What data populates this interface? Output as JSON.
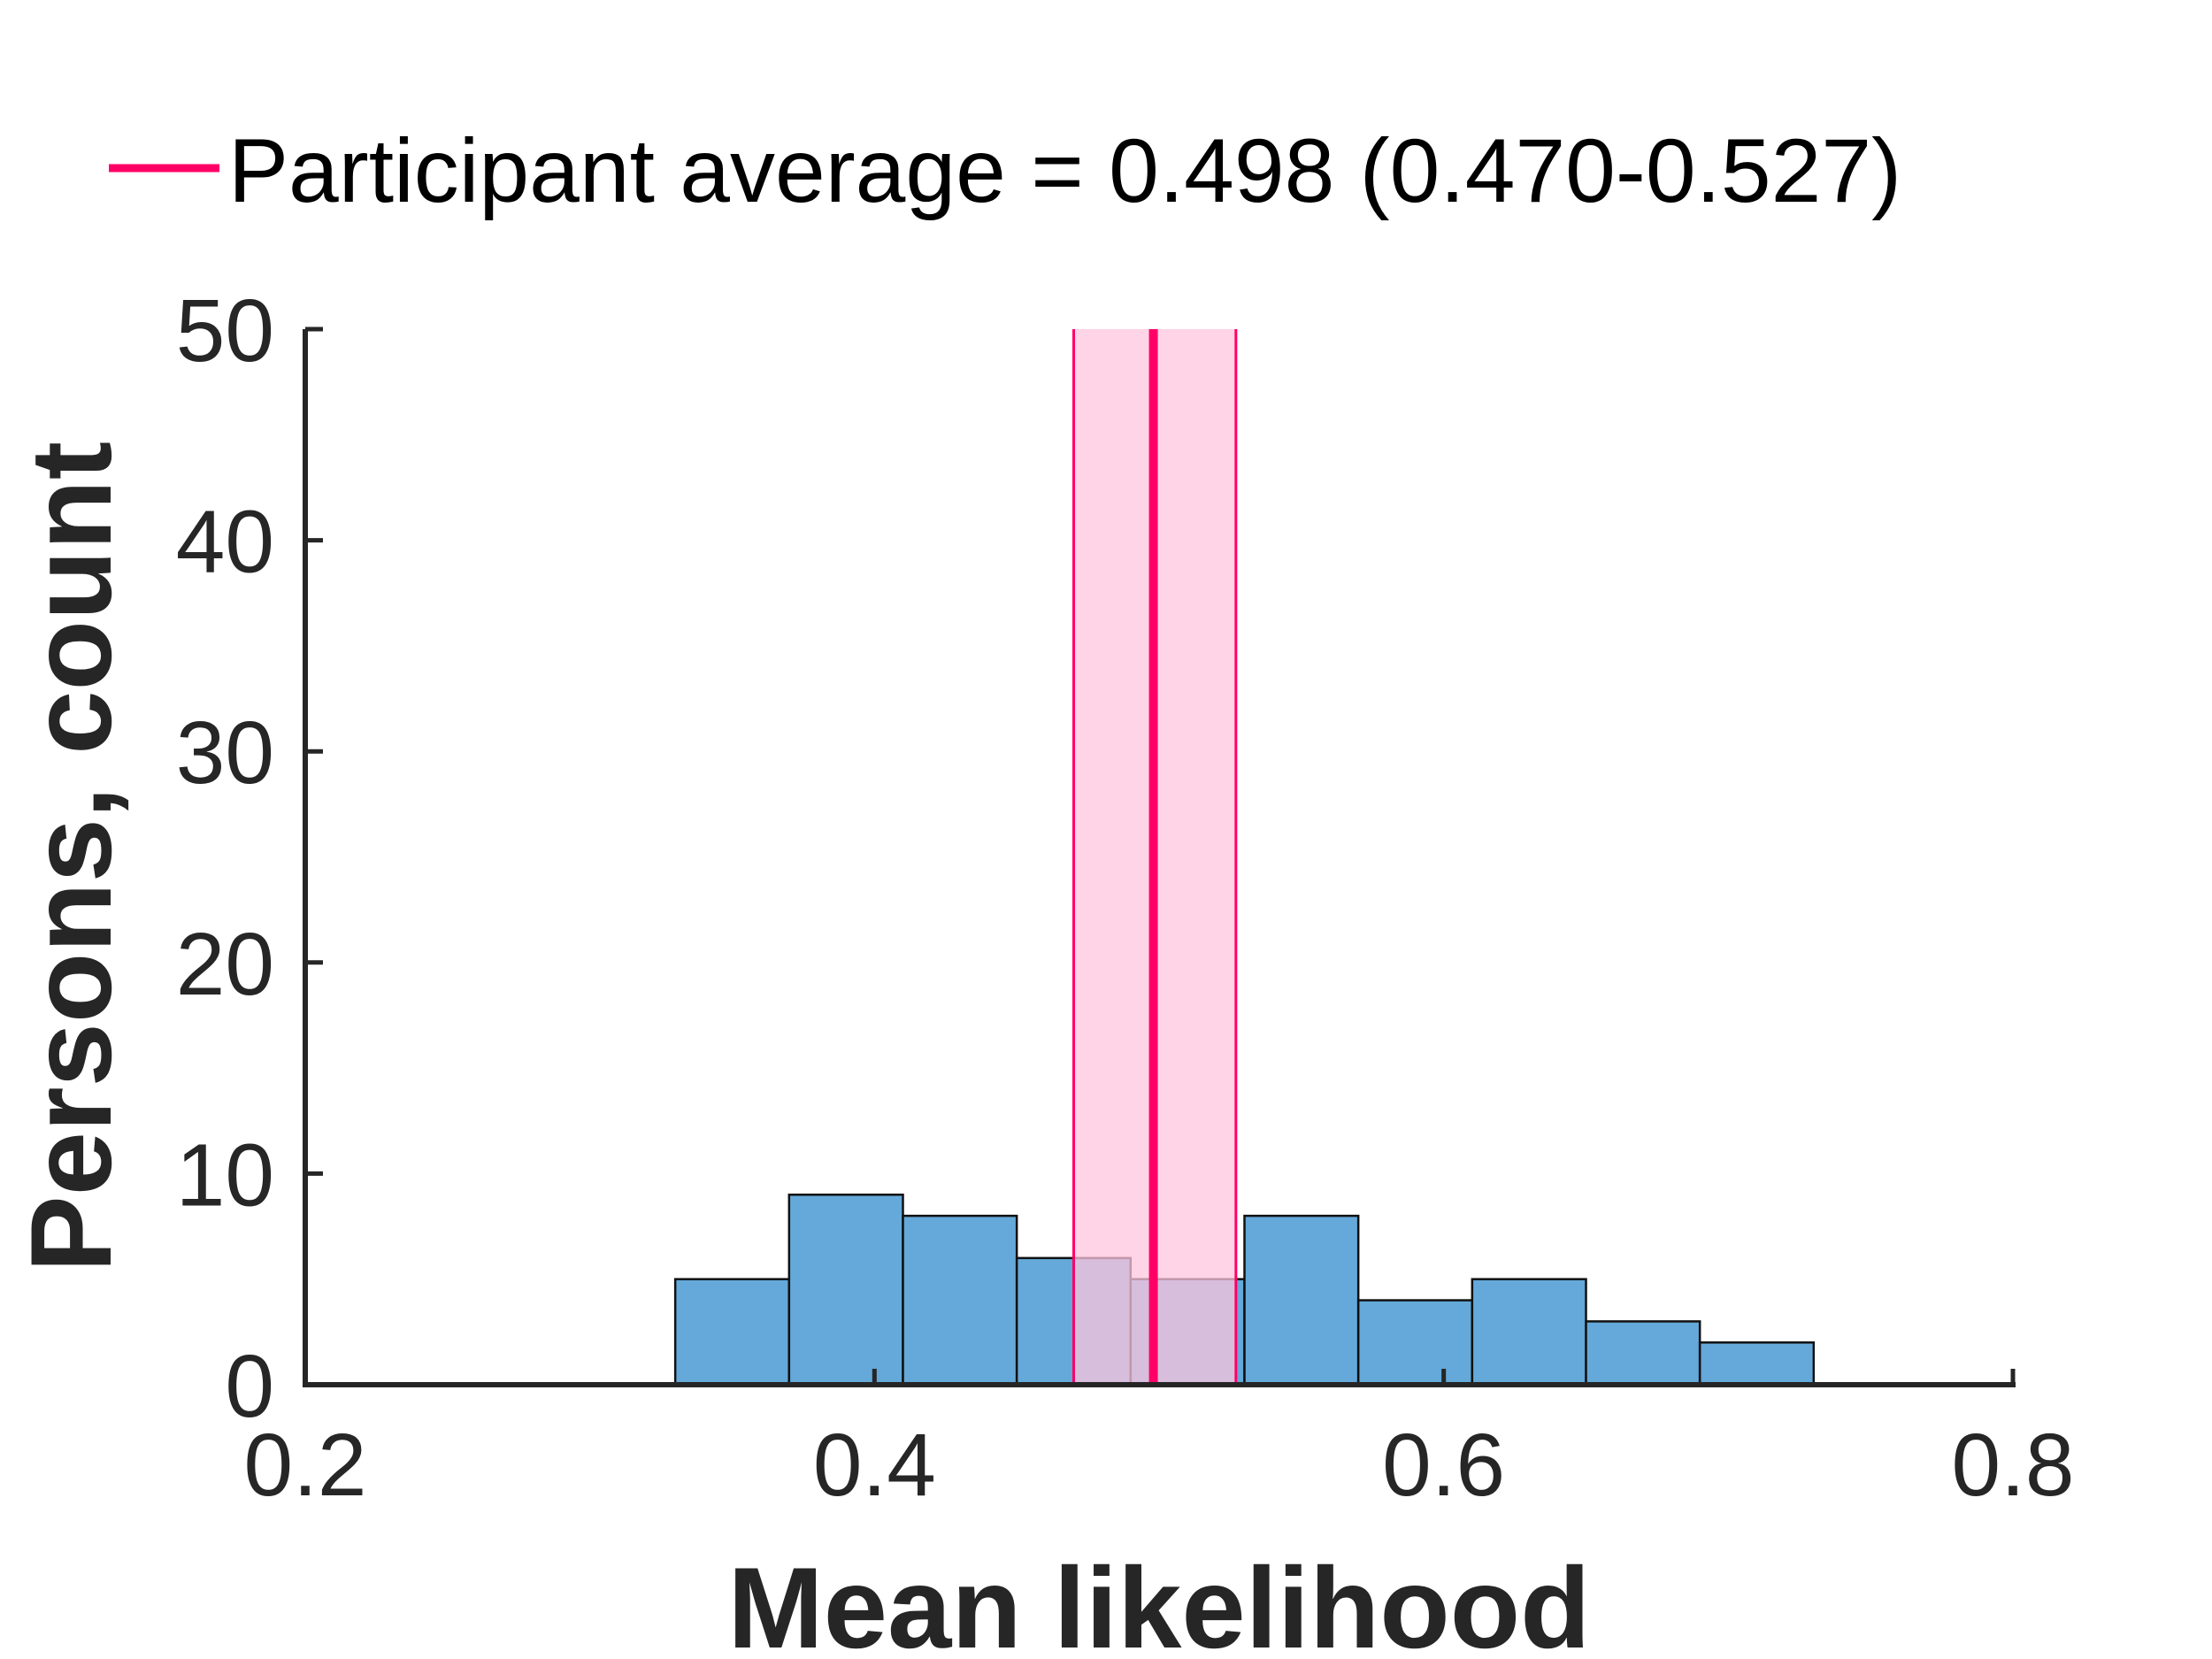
{
  "chart_data": {
    "type": "histogram",
    "legend": {
      "label": "Participant average = 0.498 (0.470-0.527)",
      "color": "#ff0066",
      "placement": "top"
    },
    "xlabel": "Mean likelihood",
    "ylabel": "Persons, count",
    "xlim": [
      0.2,
      0.8
    ],
    "ylim": [
      0,
      50
    ],
    "xticks": [
      0.2,
      0.4,
      0.6,
      0.8
    ],
    "yticks": [
      0,
      10,
      20,
      30,
      40,
      50
    ],
    "xtick_labels": [
      "0.2",
      "0.4",
      "0.6",
      "0.8"
    ],
    "ytick_labels": [
      "0",
      "10",
      "20",
      "30",
      "40",
      "50"
    ],
    "bins": [
      {
        "x0": 0.33,
        "x1": 0.37,
        "count": 5
      },
      {
        "x0": 0.37,
        "x1": 0.41,
        "count": 9
      },
      {
        "x0": 0.41,
        "x1": 0.45,
        "count": 8
      },
      {
        "x0": 0.45,
        "x1": 0.49,
        "count": 6
      },
      {
        "x0": 0.49,
        "x1": 0.53,
        "count": 5
      },
      {
        "x0": 0.53,
        "x1": 0.57,
        "count": 8
      },
      {
        "x0": 0.57,
        "x1": 0.61,
        "count": 4
      },
      {
        "x0": 0.61,
        "x1": 0.65,
        "count": 5
      },
      {
        "x0": 0.65,
        "x1": 0.69,
        "count": 3
      },
      {
        "x0": 0.69,
        "x1": 0.73,
        "count": 2
      }
    ],
    "average": {
      "value": 0.498,
      "ci_low": 0.47,
      "ci_high": 0.527
    },
    "colors": {
      "bar_fill": "#64a9d9",
      "bar_edge": "#111111",
      "average_line": "#ff0066",
      "ci_fill": "#fdc6de",
      "axis": "#262626"
    },
    "grid": false
  }
}
